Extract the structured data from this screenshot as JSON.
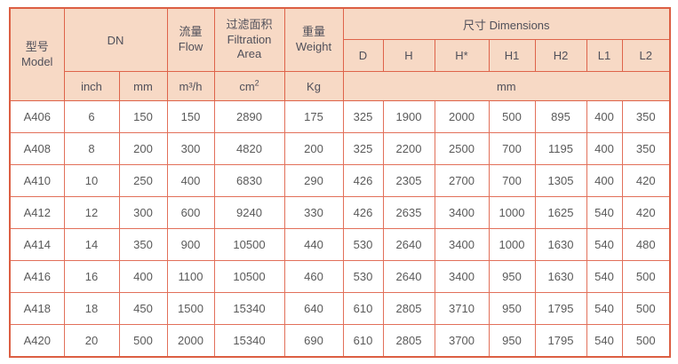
{
  "colors": {
    "header_bg": "#f7d9c5",
    "border_outer": "#dc5f43",
    "border_header": "#de634a",
    "border_body": "#e2705a",
    "header_text": "#50505a",
    "body_text": "#5a5a5a",
    "page_bg": "#ffffff"
  },
  "table": {
    "header": {
      "model_zh": "型号",
      "model_en": "Model",
      "dn": "DN",
      "flow_zh": "流量",
      "flow_en": "Flow",
      "filtration_zh": "过滤面积",
      "filtration_en1": "Filtration",
      "filtration_en2": "Area",
      "weight_zh": "重量",
      "weight_en": "Weight",
      "dimensions": "尺寸 Dimensions",
      "dim_cols": [
        "D",
        "H",
        "H*",
        "H1",
        "H2",
        "L1",
        "L2"
      ],
      "units": {
        "inch": "inch",
        "mm": "mm",
        "flow": "m³/h",
        "area_base": "cm",
        "area_sup": "2",
        "weight": "Kg",
        "dims": "mm"
      }
    },
    "rows": [
      {
        "model": "A406",
        "values": [
          "6",
          "150",
          "150",
          "2890",
          "175",
          "325",
          "1900",
          "2000",
          "500",
          "895",
          "400",
          "350"
        ]
      },
      {
        "model": "A408",
        "values": [
          "8",
          "200",
          "300",
          "4820",
          "200",
          "325",
          "2200",
          "2500",
          "700",
          "1195",
          "400",
          "350"
        ]
      },
      {
        "model": "A410",
        "values": [
          "10",
          "250",
          "400",
          "6830",
          "290",
          "426",
          "2305",
          "2700",
          "700",
          "1305",
          "400",
          "420"
        ]
      },
      {
        "model": "A412",
        "values": [
          "12",
          "300",
          "600",
          "9240",
          "330",
          "426",
          "2635",
          "3400",
          "1000",
          "1625",
          "540",
          "420"
        ]
      },
      {
        "model": "A414",
        "values": [
          "14",
          "350",
          "900",
          "10500",
          "440",
          "530",
          "2640",
          "3400",
          "1000",
          "1630",
          "540",
          "480"
        ]
      },
      {
        "model": "A416",
        "values": [
          "16",
          "400",
          "1100",
          "10500",
          "460",
          "530",
          "2640",
          "3400",
          "950",
          "1630",
          "540",
          "500"
        ]
      },
      {
        "model": "A418",
        "values": [
          "18",
          "450",
          "1500",
          "15340",
          "640",
          "610",
          "2805",
          "3710",
          "950",
          "1795",
          "540",
          "500"
        ]
      },
      {
        "model": "A420",
        "values": [
          "20",
          "500",
          "2000",
          "15340",
          "690",
          "610",
          "2805",
          "3700",
          "950",
          "1795",
          "540",
          "500"
        ]
      }
    ]
  }
}
